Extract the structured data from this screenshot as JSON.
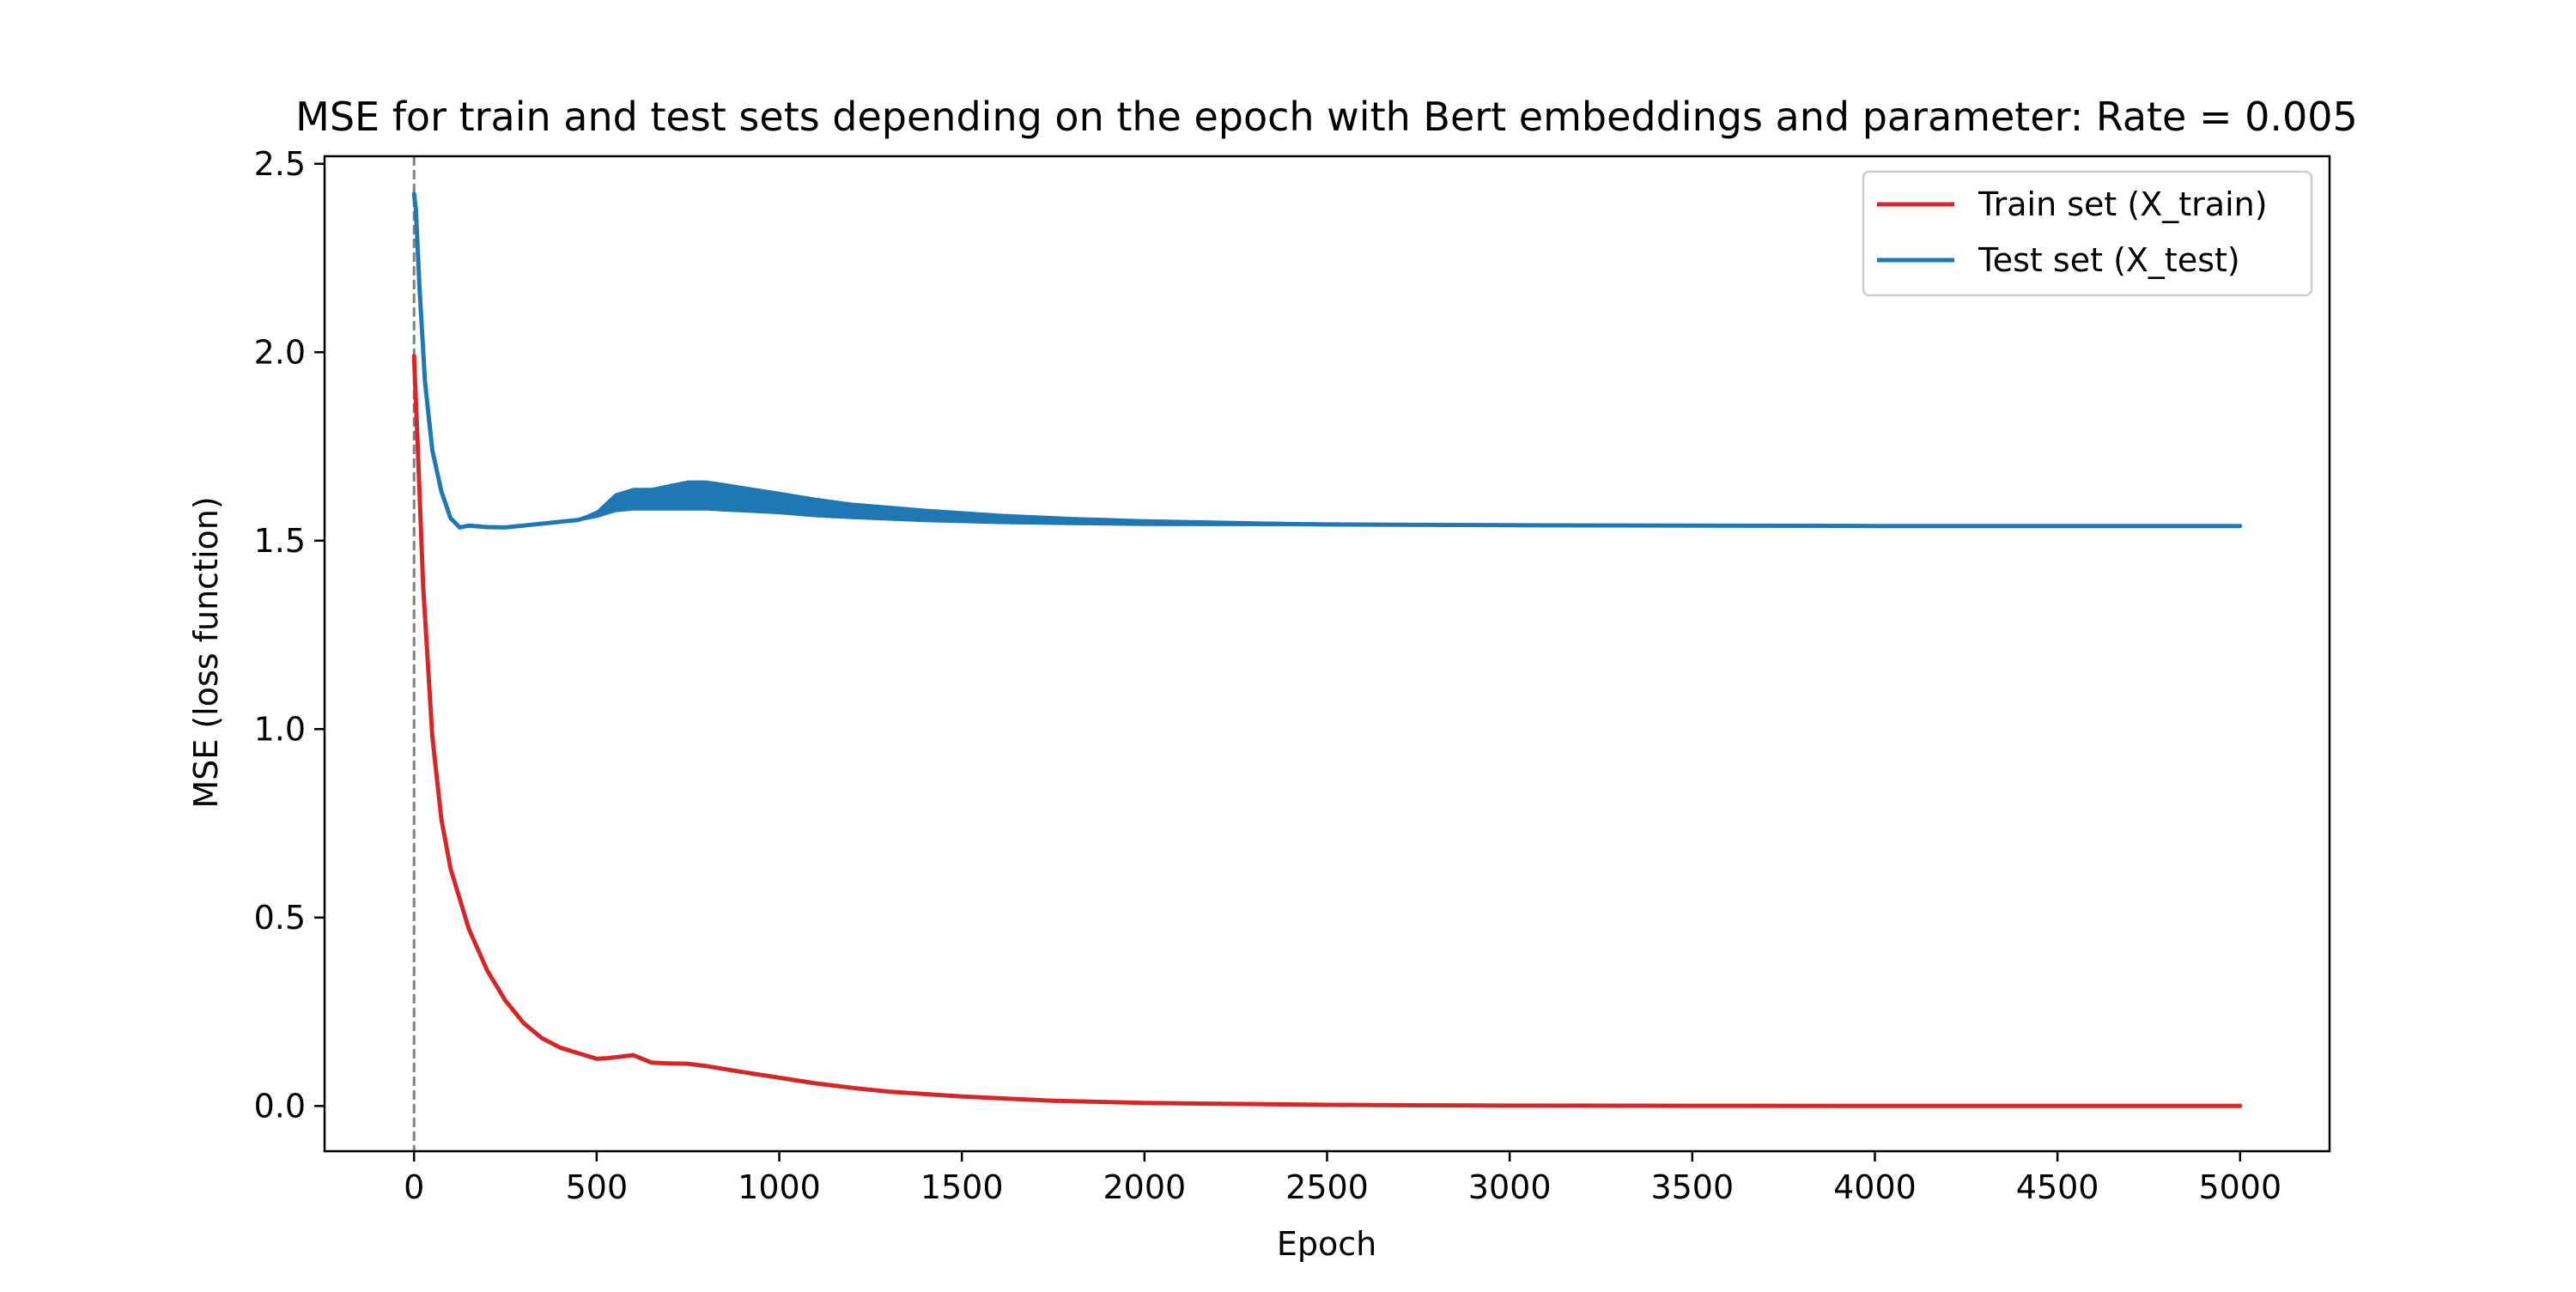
{
  "chart_data": {
    "type": "line",
    "title": "MSE for train and test sets depending on the epoch with Bert embeddings and parameter: Rate = 0.005",
    "xlabel": "Epoch",
    "ylabel": "MSE (loss function)",
    "xlim": [
      -245,
      5245
    ],
    "ylim": [
      -0.12,
      2.52
    ],
    "xticks": [
      0,
      500,
      1000,
      1500,
      2000,
      2500,
      3000,
      3500,
      4000,
      4500,
      5000
    ],
    "yticks": [
      0.0,
      0.5,
      1.0,
      1.5,
      2.0,
      2.5
    ],
    "xtick_labels": [
      "0",
      "500",
      "1000",
      "1500",
      "2000",
      "2500",
      "3000",
      "3500",
      "4000",
      "4500",
      "5000"
    ],
    "ytick_labels": [
      "0.0",
      "0.5",
      "1.0",
      "1.5",
      "2.0",
      "2.5"
    ],
    "grid": false,
    "legend_position": "top-right",
    "vline": {
      "x": 0,
      "style": "dashed",
      "color": "#808080"
    },
    "series": [
      {
        "name": "Train set (X_train)",
        "color": "#d62728",
        "x": [
          0,
          10,
          25,
          50,
          75,
          100,
          150,
          200,
          250,
          300,
          350,
          400,
          450,
          500,
          530,
          560,
          600,
          650,
          700,
          750,
          800,
          900,
          1000,
          1100,
          1200,
          1300,
          1500,
          1750,
          2000,
          2500,
          3000,
          3500,
          4000,
          4500,
          5000
        ],
        "y": [
          1.99,
          1.75,
          1.38,
          0.98,
          0.76,
          0.63,
          0.47,
          0.36,
          0.28,
          0.22,
          0.18,
          0.155,
          0.14,
          0.125,
          0.127,
          0.13,
          0.135,
          0.115,
          0.113,
          0.112,
          0.106,
          0.09,
          0.075,
          0.06,
          0.048,
          0.038,
          0.025,
          0.014,
          0.008,
          0.003,
          0.001,
          0.0005,
          0.0,
          0.0,
          0.0
        ]
      },
      {
        "name": "Test set (X_test)",
        "color": "#1f77b4",
        "x": [
          0,
          5,
          15,
          30,
          50,
          75,
          100,
          125,
          150,
          175,
          200,
          250,
          300,
          350,
          400,
          450,
          500,
          550,
          600,
          650,
          700,
          750,
          800,
          850,
          900,
          1000,
          1100,
          1200,
          1400,
          1600,
          1800,
          2000,
          2500,
          3000,
          3500,
          4000,
          4500,
          5000
        ],
        "y": [
          2.42,
          2.38,
          2.17,
          1.92,
          1.74,
          1.63,
          1.56,
          1.535,
          1.54,
          1.538,
          1.536,
          1.535,
          1.54,
          1.545,
          1.55,
          1.555,
          1.57,
          1.6,
          1.61,
          1.61,
          1.615,
          1.62,
          1.62,
          1.615,
          1.61,
          1.6,
          1.588,
          1.579,
          1.567,
          1.558,
          1.552,
          1.548,
          1.543,
          1.541,
          1.54,
          1.539,
          1.539,
          1.539
        ],
        "band_halfwidth": [
          0,
          0,
          0,
          0,
          0,
          0,
          0,
          0,
          0,
          0,
          0,
          0,
          0,
          0,
          0,
          0.004,
          0.01,
          0.025,
          0.03,
          0.03,
          0.035,
          0.04,
          0.04,
          0.038,
          0.035,
          0.03,
          0.026,
          0.022,
          0.018,
          0.014,
          0.011,
          0.009,
          0.005,
          0.003,
          0.002,
          0.001,
          0.001,
          0.001
        ]
      }
    ]
  }
}
